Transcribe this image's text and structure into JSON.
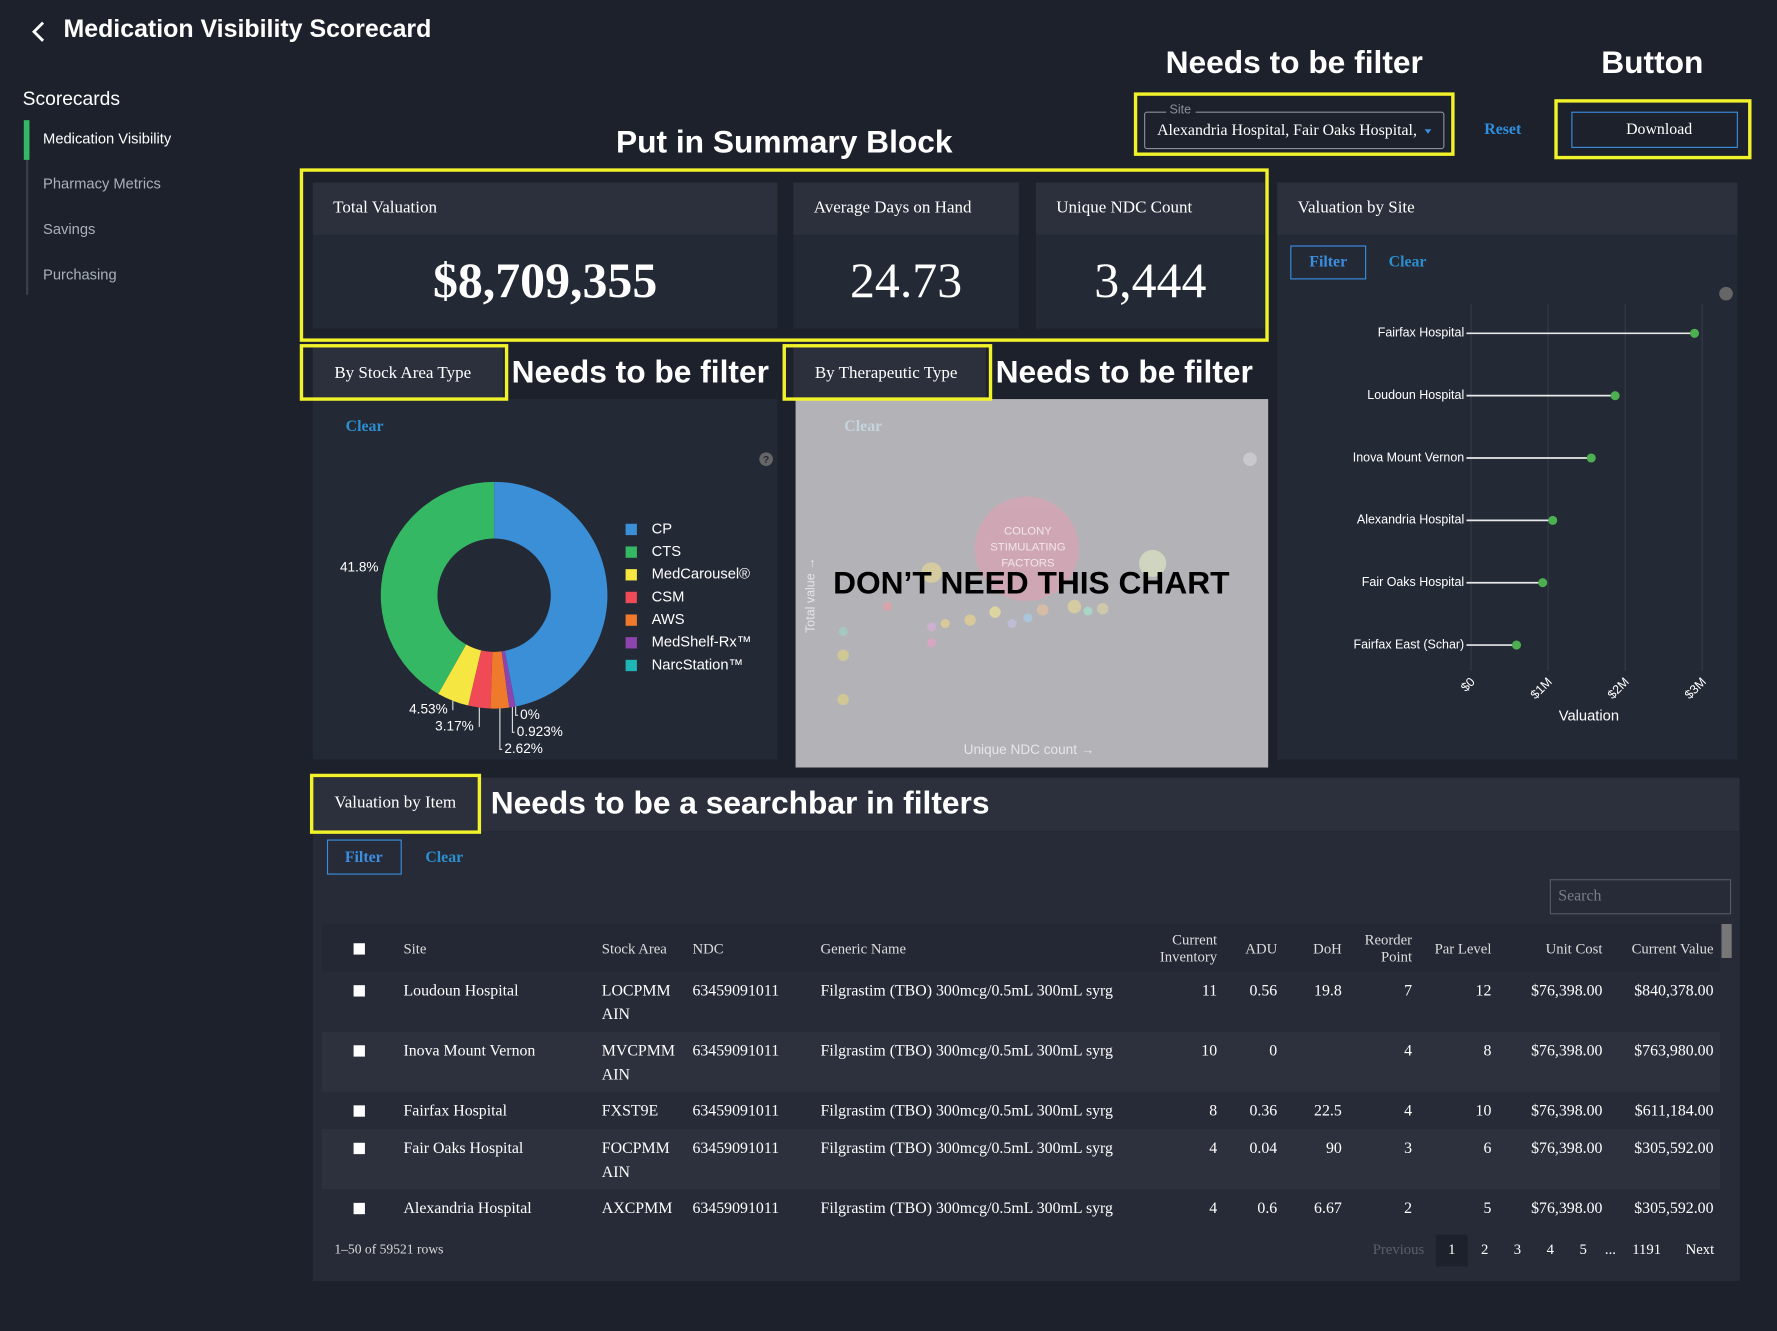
{
  "header": {
    "title": "Medication Visibility Scorecard"
  },
  "sidebar": {
    "heading": "Scorecards",
    "items": [
      "Medication Visibility",
      "Pharmacy Metrics",
      "Savings",
      "Purchasing"
    ],
    "active": 0
  },
  "annotations": {
    "site_filter": "Needs to be filter",
    "button": "Button",
    "summary": "Put in Summary Block",
    "stock_filter": "Needs to be filter",
    "therapeutic_filter": "Needs to be filter",
    "no_chart": "DON’T NEED THIS CHART",
    "searchbar": "Needs to be a searchbar in filters"
  },
  "filters": {
    "site_label": "Site",
    "site_value": "Alexandria Hospital, Fair Oaks Hospital,",
    "reset": "Reset",
    "download": "Download"
  },
  "kpis": [
    {
      "label": "Total Valuation",
      "value": "$8,709,355"
    },
    {
      "label": "Average Days on Hand",
      "value": "24.73"
    },
    {
      "label": "Unique NDC Count",
      "value": "3,444"
    }
  ],
  "chart_data": [
    {
      "type": "pie",
      "donut": true,
      "title": "By Stock Area Type",
      "clear": "Clear",
      "categories": [
        "CP",
        "CTS",
        "MedCarousel®",
        "CSM",
        "AWS",
        "MedShelf-Rx™",
        "NarcStation™"
      ],
      "values": [
        46.957,
        41.8,
        4.53,
        3.17,
        2.62,
        0.923,
        0
      ],
      "value_labels": [
        null,
        "41.8%",
        "4.53%",
        "3.17%",
        "2.62%",
        "0.923%",
        "0%"
      ],
      "colors": [
        "#3a8fd6",
        "#35b864",
        "#f5e642",
        "#ef4a55",
        "#f07a2b",
        "#8e44ad",
        "#1fb5b5"
      ]
    },
    {
      "type": "lollipop",
      "title": "Valuation by Site",
      "filter": "Filter",
      "clear": "Clear",
      "categories": [
        "Fairfax Hospital",
        "Loudoun Hospital",
        "Inova Mount Vernon",
        "Alexandria Hospital",
        "Fair Oaks Hospital",
        "Fairfax East (Schar)"
      ],
      "values": [
        2900000,
        1870000,
        1560000,
        1060000,
        930000,
        590000
      ],
      "color": "#4caf50",
      "xlim": [
        0,
        3000000
      ],
      "xticks": [
        {
          "value": 0,
          "label": "$0"
        },
        {
          "value": 1000000,
          "label": "$1M"
        },
        {
          "value": 2000000,
          "label": "$2M"
        },
        {
          "value": 3000000,
          "label": "$3M"
        }
      ],
      "xlabel": "Valuation",
      "grid": true
    }
  ],
  "therapeutic": {
    "title": "By Therapeutic Type",
    "clear": "Clear",
    "bubble_label": [
      "COLONY",
      "STIMULATING",
      "FACTORS"
    ],
    "y_label": "Total value →",
    "x_label": "Unique NDC count →"
  },
  "table": {
    "title": "Valuation by Item",
    "filter": "Filter",
    "clear": "Clear",
    "search_placeholder": "Search",
    "columns": [
      "Site",
      "Stock Area",
      "NDC",
      "Generic Name",
      "Current Inventory",
      "ADU",
      "DoH",
      "Reorder Point",
      "Par Level",
      "Unit Cost",
      "Current Value"
    ],
    "rows": [
      [
        "Loudoun Hospital",
        "LOCPMMAIN",
        "63459091011",
        "Filgrastim (TBO) 300mcg/0.5mL 300mL syrg",
        11,
        0.56,
        19.8,
        7,
        12,
        "$76,398.00",
        "$840,378.00"
      ],
      [
        "Inova Mount Vernon",
        "MVCPMMAIN",
        "63459091011",
        "Filgrastim (TBO) 300mcg/0.5mL 300mL syrg",
        10,
        0,
        null,
        4,
        8,
        "$76,398.00",
        "$763,980.00"
      ],
      [
        "Fairfax Hospital",
        "FXST9E",
        "63459091011",
        "Filgrastim (TBO) 300mcg/0.5mL 300mL syrg",
        8,
        0.36,
        22.5,
        4,
        10,
        "$76,398.00",
        "$611,184.00"
      ],
      [
        "Fair Oaks Hospital",
        "FOCPMMAIN",
        "63459091011",
        "Filgrastim (TBO) 300mcg/0.5mL 300mL syrg",
        4,
        0.04,
        90,
        3,
        6,
        "$76,398.00",
        "$305,592.00"
      ],
      [
        "Alexandria Hospital",
        "AXCPMM",
        "63459091011",
        "Filgrastim (TBO) 300mcg/0.5mL 300mL syrg",
        4,
        0.6,
        6.67,
        2,
        5,
        "$76,398.00",
        "$305,592.00"
      ]
    ],
    "footer": "1–50 of 59521 rows",
    "pagination": [
      "Previous",
      "1",
      "2",
      "3",
      "4",
      "5",
      "...",
      "1191",
      "Next"
    ],
    "current_page": 1
  }
}
